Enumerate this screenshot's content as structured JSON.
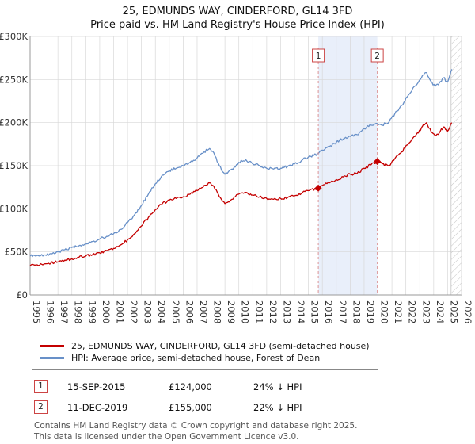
{
  "title": "25, EDMUNDS WAY, CINDERFORD, GL14 3FD",
  "subtitle": "Price paid vs. HM Land Registry's House Price Index (HPI)",
  "colors": {
    "price_paid": "#c40000",
    "hpi": "#6890c8",
    "grid": "#d8d8d8",
    "axis": "#999999",
    "band_fill": "#e9effa",
    "dashed_line": "#dd9494",
    "badge_border": "#cc4444",
    "hatch": "#c4c4c4",
    "tick_text": "#333333"
  },
  "y_axis": {
    "ticks": [
      "£0",
      "£50K",
      "£100K",
      "£150K",
      "£200K",
      "£250K",
      "£300K"
    ],
    "values": [
      0,
      50000,
      100000,
      150000,
      200000,
      250000,
      300000
    ]
  },
  "x_axis": {
    "years": [
      1995,
      1996,
      1997,
      1998,
      1999,
      2000,
      2001,
      2002,
      2003,
      2004,
      2005,
      2006,
      2007,
      2008,
      2009,
      2010,
      2011,
      2012,
      2013,
      2014,
      2015,
      2016,
      2017,
      2018,
      2019,
      2020,
      2021,
      2022,
      2023,
      2024,
      2025,
      2026
    ]
  },
  "chart_data": {
    "type": "line",
    "title": "25, EDMUNDS WAY, CINDERFORD, GL14 3FD — Price paid vs. HM Land Registry's House Price Index (HPI)",
    "x_range": [
      1995,
      2026
    ],
    "y_range": [
      0,
      300000
    ],
    "x": [
      1995,
      1995.5,
      1996,
      1996.5,
      1997,
      1997.5,
      1998,
      1998.5,
      1999,
      1999.5,
      2000,
      2000.5,
      2001,
      2001.5,
      2002,
      2002.5,
      2003,
      2003.5,
      2004,
      2004.5,
      2005,
      2005.5,
      2006,
      2006.5,
      2007,
      2007.5,
      2007.9,
      2008.2,
      2008.6,
      2009,
      2009.5,
      2010,
      2010.5,
      2011,
      2011.5,
      2012,
      2012.5,
      2013,
      2013.5,
      2014,
      2014.5,
      2015,
      2015.71,
      2016,
      2016.5,
      2017,
      2017.5,
      2018,
      2018.5,
      2019,
      2019.5,
      2019.95,
      2020.3,
      2020.8,
      2021.2,
      2021.7,
      2022.1,
      2022.5,
      2022.9,
      2023.2,
      2023.5,
      2023.8,
      2024.1,
      2024.4,
      2024.7,
      2025,
      2025.3
    ],
    "series": [
      {
        "name": "25, EDMUNDS WAY, CINDERFORD, GL14 3FD (semi-detached house)",
        "color": "#c40000",
        "values": [
          34000,
          35000,
          36000,
          37000,
          38500,
          40500,
          42000,
          43500,
          45000,
          47000,
          49000,
          51500,
          54000,
          58000,
          64000,
          71000,
          80000,
          90000,
          99000,
          106000,
          110000,
          112000,
          114000,
          117000,
          121000,
          127000,
          130000,
          126000,
          114000,
          106000,
          111000,
          117000,
          119000,
          116000,
          114000,
          112000,
          111000,
          112000,
          113000,
          115000,
          118000,
          121000,
          124000,
          127000,
          130000,
          134000,
          137000,
          140000,
          141000,
          147000,
          151000,
          155000,
          152000,
          150000,
          158000,
          166000,
          174000,
          182000,
          188000,
          196000,
          200000,
          190000,
          185000,
          188000,
          195000,
          190000,
          200000
        ]
      },
      {
        "name": "HPI: Average price, semi-detached house, Forest of Dean",
        "color": "#6890c8",
        "values": [
          45000,
          46000,
          46500,
          48000,
          50000,
          52500,
          55000,
          57000,
          59000,
          62000,
          65000,
          68000,
          71000,
          76000,
          84000,
          93000,
          104000,
          117000,
          129000,
          139000,
          144000,
          147000,
          150000,
          154000,
          159000,
          166000,
          170000,
          165000,
          150000,
          140000,
          146000,
          154000,
          157000,
          152000,
          150000,
          147000,
          146000,
          147000,
          149000,
          152000,
          156000,
          160000,
          164000,
          168000,
          172000,
          177000,
          181000,
          184000,
          186000,
          193000,
          197000,
          199000,
          197000,
          201000,
          210000,
          220000,
          230000,
          240000,
          247000,
          255000,
          258000,
          248000,
          242000,
          246000,
          252000,
          247000,
          262000
        ]
      }
    ],
    "shaded_band_x": [
      2015.71,
      2019.95
    ],
    "hatched_region_x": [
      2025.25,
      2026
    ]
  },
  "legend": [
    {
      "label": "25, EDMUNDS WAY, CINDERFORD, GL14 3FD (semi-detached house)",
      "color": "#c40000"
    },
    {
      "label": "HPI: Average price, semi-detached house, Forest of Dean",
      "color": "#6890c8"
    }
  ],
  "transactions": [
    {
      "num": "1",
      "date": "15-SEP-2015",
      "price": "£124,000",
      "hpi_diff": "24% ↓ HPI",
      "x": 2015.71,
      "value": 124000
    },
    {
      "num": "2",
      "date": "11-DEC-2019",
      "price": "£155,000",
      "hpi_diff": "22% ↓ HPI",
      "x": 2019.95,
      "value": 155000
    }
  ],
  "footer": [
    "Contains HM Land Registry data © Crown copyright and database right 2025.",
    "This data is licensed under the Open Government Licence v3.0."
  ]
}
